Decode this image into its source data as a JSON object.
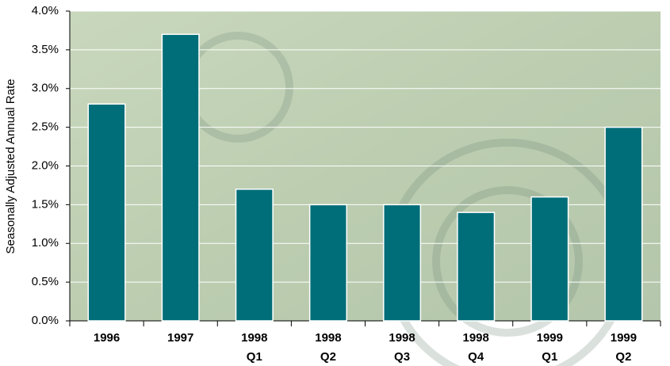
{
  "chart_data": {
    "type": "bar",
    "y_label": "Seasonally Adjusted Annual Rate",
    "categories": [
      [
        "1996"
      ],
      [
        "1997"
      ],
      [
        "1998",
        "Q1"
      ],
      [
        "1998",
        "Q2"
      ],
      [
        "1998",
        "Q3"
      ],
      [
        "1998",
        "Q4"
      ],
      [
        "1999",
        "Q1"
      ],
      [
        "1999",
        "Q2"
      ]
    ],
    "values": [
      2.8,
      3.7,
      1.7,
      1.5,
      1.5,
      1.4,
      1.6,
      2.5
    ],
    "color": "#006e78",
    "ylim": [
      0,
      4
    ],
    "yticks": [
      {
        "value": 0,
        "label": "0.0%"
      },
      {
        "value": 0.5,
        "label": "0.5%"
      },
      {
        "value": 1,
        "label": "1.0%"
      },
      {
        "value": 1.5,
        "label": "1.5%"
      },
      {
        "value": 2,
        "label": "2.0%"
      },
      {
        "value": 2.5,
        "label": "2.5%"
      },
      {
        "value": 3,
        "label": "3.0%"
      },
      {
        "value": 3.5,
        "label": "3.5%"
      },
      {
        "value": 4,
        "label": "4.0%"
      }
    ],
    "grid": true
  }
}
